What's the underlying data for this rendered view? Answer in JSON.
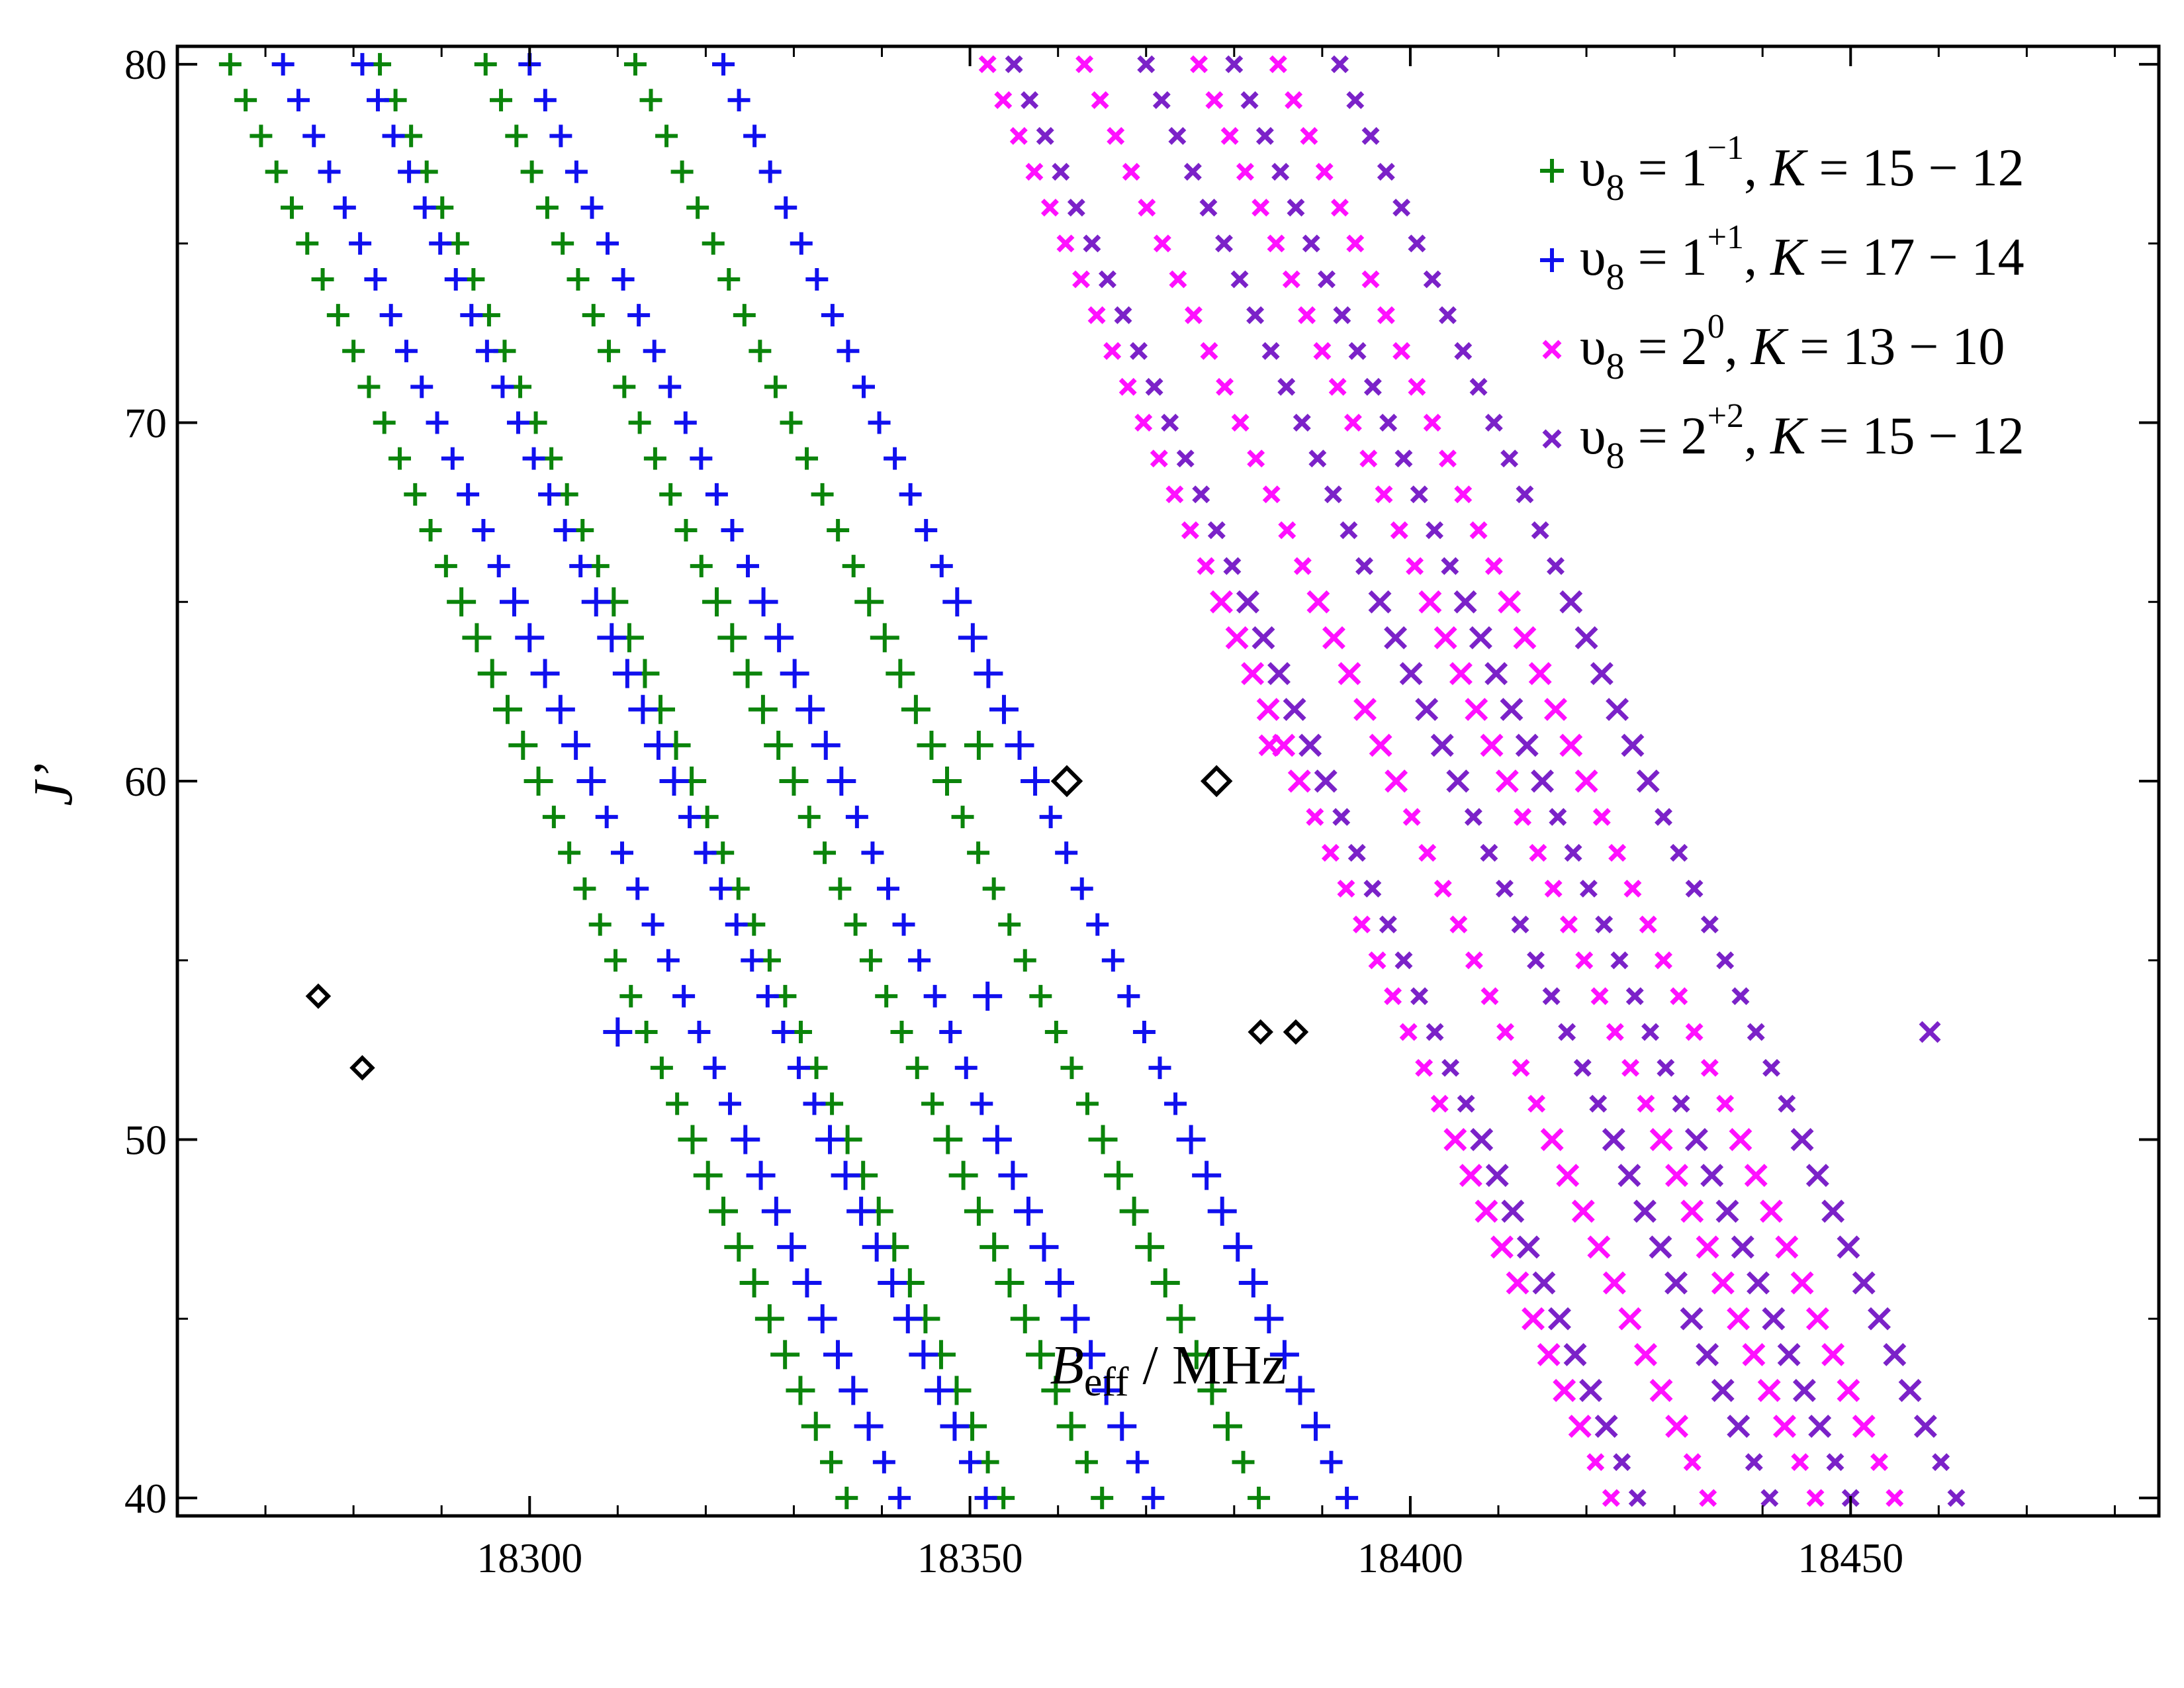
{
  "chart_data": {
    "type": "scatter",
    "title": "",
    "xlabel": "B",
    "xlabel_sub": "eff",
    "xlabel_unit": " / MHz",
    "ylabel": "J’",
    "xlim": [
      18260,
      18485
    ],
    "ylim": [
      39.5,
      80.5
    ],
    "x_ticks": [
      18300,
      18350,
      18400,
      18450
    ],
    "x_tick_labels": [
      "18300",
      "18350",
      "18400",
      "18450"
    ],
    "y_ticks": [
      40,
      50,
      60,
      70,
      80
    ],
    "y_tick_labels": [
      "40",
      "50",
      "60",
      "70",
      "80"
    ],
    "legend_position": "top-right",
    "series": [
      {
        "name": "υ8 = 1^−1, K = 15 − 12",
        "label": {
          "base": "υ",
          "sub": "8",
          "mid": " = 1",
          "sup": "−1",
          "tail_pre": ", ",
          "k": "K",
          "tail": " = 15 − 12"
        },
        "marker": "plus",
        "color": "#0b840b",
        "bands": [
          {
            "x_at_J80": 18266,
            "slope": -1.75
          },
          {
            "x_at_J80": 18283,
            "slope": -1.77
          },
          {
            "x_at_J80": 18295,
            "slope": -1.75
          },
          {
            "x_at_J80": 18312,
            "slope": -1.77
          }
        ],
        "perturbed_points": [
          {
            "x": 18351,
            "y": 61
          }
        ]
      },
      {
        "name": "υ8 = 1^+1, K = 17 − 14",
        "label": {
          "base": "υ",
          "sub": "8",
          "mid": " = 1",
          "sup": "+1",
          "tail_pre": ", ",
          "k": "K",
          "tail": " = 17 − 14"
        },
        "marker": "plus",
        "color": "#1010ee",
        "bands": [
          {
            "x_at_J80": 18272,
            "slope": -1.75
          },
          {
            "x_at_J80": 18281,
            "slope": -1.77
          },
          {
            "x_at_J80": 18300,
            "slope": -1.77
          },
          {
            "x_at_J80": 18322,
            "slope": -1.77
          }
        ],
        "perturbed_points": [
          {
            "x": 18310,
            "y": 53
          },
          {
            "x": 18352,
            "y": 54
          }
        ]
      },
      {
        "name": "υ8 = 2^0, K = 13 − 10",
        "label": {
          "base": "υ",
          "sub": "8",
          "mid": " = 2",
          "sup": "0",
          "tail_pre": ", ",
          "k": "K",
          "tail": " = 13 − 10"
        },
        "marker": "x",
        "color": "#ff10ff",
        "bands": [
          {
            "x_at_J80": 18352,
            "slope": -1.77
          },
          {
            "x_at_J80": 18363,
            "slope": -1.77
          },
          {
            "x_at_J80": 18376,
            "slope": -1.75
          },
          {
            "x_at_J80": 18385,
            "slope": -1.75
          }
        ],
        "perturbed_points": [
          {
            "x": 18384,
            "y": 61
          }
        ]
      },
      {
        "name": "υ8 = 2^+2, K = 15 − 12",
        "label": {
          "base": "υ",
          "sub": "8",
          "mid": " = 2",
          "sup": "+2",
          "tail_pre": ", ",
          "k": "K",
          "tail": " = 15 − 12"
        },
        "marker": "x",
        "color": "#7b22c8",
        "bands": [
          {
            "x_at_J80": 18355,
            "slope": -1.77
          },
          {
            "x_at_J80": 18370,
            "slope": -1.77
          },
          {
            "x_at_J80": 18380,
            "slope": -1.75
          },
          {
            "x_at_J80": 18392,
            "slope": -1.75
          }
        ],
        "perturbed_points": [
          {
            "x": 18459,
            "y": 53
          }
        ]
      }
    ],
    "open_diamonds": {
      "color": "#000000",
      "points": [
        {
          "x": 18276,
          "y": 54
        },
        {
          "x": 18281,
          "y": 52
        },
        {
          "x": 18361,
          "y": 60
        },
        {
          "x": 18378,
          "y": 60
        },
        {
          "x": 18383,
          "y": 53
        },
        {
          "x": 18387,
          "y": 53
        }
      ]
    }
  }
}
